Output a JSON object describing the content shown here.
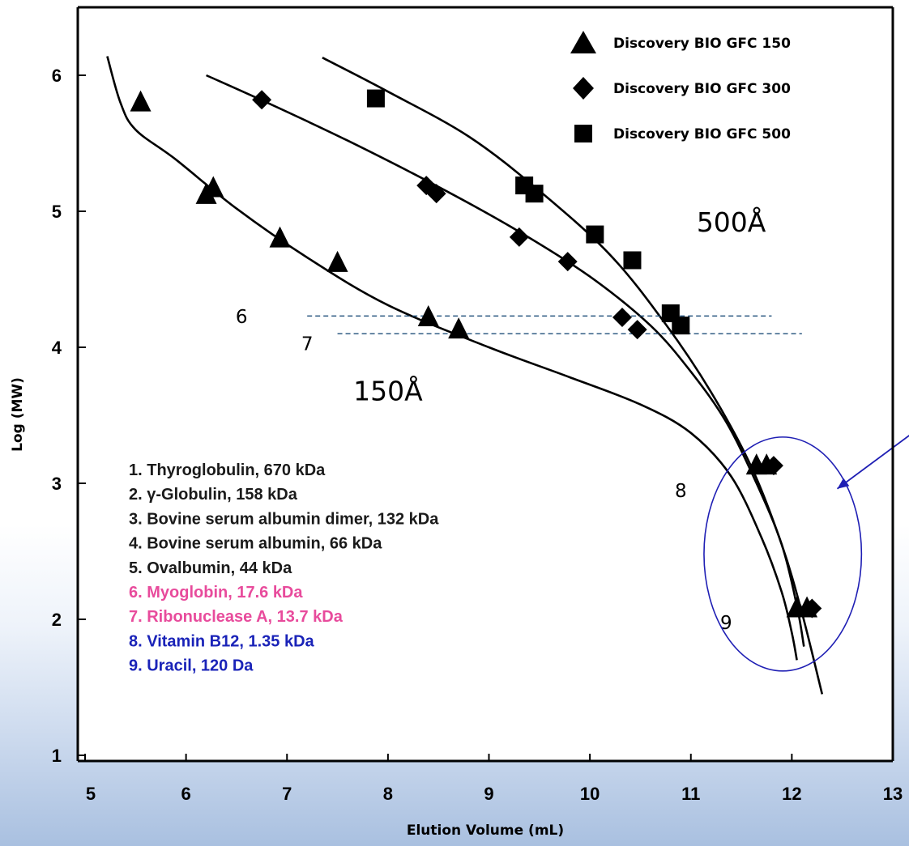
{
  "chart_data": {
    "type": "scatter",
    "xlabel": "Elution Volume (mL)",
    "ylabel": "Log (MW)",
    "xlim": [
      5,
      13
    ],
    "ylim": [
      1,
      6.5
    ],
    "x_ticks": [
      "5",
      "6",
      "7",
      "8",
      "9",
      "10",
      "11",
      "12",
      "13"
    ],
    "y_ticks": [
      "1",
      "2",
      "3",
      "4",
      "5",
      "6"
    ],
    "legend_position": "top-right",
    "series": [
      {
        "name": "Discovery BIO GFC 150",
        "marker": "triangle",
        "color": "#000000",
        "points": [
          [
            5.55,
            5.8
          ],
          [
            6.2,
            5.12
          ],
          [
            6.27,
            5.17
          ],
          [
            6.93,
            4.8
          ],
          [
            7.5,
            4.62
          ],
          [
            8.4,
            4.22
          ],
          [
            8.7,
            4.13
          ],
          [
            11.65,
            3.13
          ],
          [
            11.75,
            3.13
          ],
          [
            12.05,
            2.08
          ],
          [
            12.15,
            2.08
          ]
        ],
        "curve": [
          [
            5.22,
            6.14
          ],
          [
            5.35,
            5.8
          ],
          [
            5.5,
            5.6
          ],
          [
            5.9,
            5.38
          ],
          [
            6.5,
            5.02
          ],
          [
            7.2,
            4.66
          ],
          [
            8.0,
            4.31
          ],
          [
            9.0,
            4.0
          ],
          [
            9.8,
            3.78
          ],
          [
            10.5,
            3.58
          ],
          [
            11.0,
            3.37
          ],
          [
            11.4,
            3.05
          ],
          [
            11.7,
            2.6
          ],
          [
            11.9,
            2.2
          ],
          [
            12.0,
            1.9
          ],
          [
            12.05,
            1.7
          ]
        ]
      },
      {
        "name": "Discovery BIO GFC 300",
        "marker": "diamond",
        "color": "#000000",
        "points": [
          [
            6.75,
            5.82
          ],
          [
            8.38,
            5.19
          ],
          [
            8.48,
            5.13
          ],
          [
            9.3,
            4.81
          ],
          [
            9.78,
            4.63
          ],
          [
            10.32,
            4.22
          ],
          [
            10.47,
            4.13
          ],
          [
            11.82,
            3.13
          ],
          [
            12.2,
            2.08
          ]
        ],
        "curve": [
          [
            6.2,
            6.0
          ],
          [
            6.8,
            5.8
          ],
          [
            7.6,
            5.52
          ],
          [
            8.5,
            5.18
          ],
          [
            9.3,
            4.85
          ],
          [
            10.0,
            4.52
          ],
          [
            10.6,
            4.16
          ],
          [
            11.0,
            3.82
          ],
          [
            11.35,
            3.45
          ],
          [
            11.65,
            3.0
          ],
          [
            11.9,
            2.55
          ],
          [
            12.05,
            2.1
          ],
          [
            12.12,
            1.8
          ]
        ]
      },
      {
        "name": "Discovery BIO GFC 500",
        "marker": "square",
        "color": "#000000",
        "points": [
          [
            7.88,
            5.83
          ],
          [
            9.35,
            5.19
          ],
          [
            9.45,
            5.13
          ],
          [
            10.05,
            4.83
          ],
          [
            10.42,
            4.64
          ],
          [
            10.8,
            4.25
          ],
          [
            10.9,
            4.16
          ]
        ],
        "curve": [
          [
            7.35,
            6.13
          ],
          [
            8.0,
            5.88
          ],
          [
            8.8,
            5.55
          ],
          [
            9.5,
            5.15
          ],
          [
            10.2,
            4.68
          ],
          [
            10.75,
            4.17
          ],
          [
            11.2,
            3.67
          ],
          [
            11.6,
            3.12
          ],
          [
            11.9,
            2.55
          ],
          [
            12.1,
            2.05
          ],
          [
            12.3,
            1.45
          ]
        ]
      }
    ],
    "reference_lines": [
      {
        "y": 4.23,
        "x_start": 7.2,
        "x_end": 11.8,
        "style": "dashed",
        "color": "#1f4e79"
      },
      {
        "y": 4.1,
        "x_start": 7.5,
        "x_end": 12.1,
        "style": "dashed",
        "color": "#1f4e79"
      }
    ],
    "annotations": [
      {
        "text": "500Å",
        "x": 11.4,
        "y": 4.85,
        "kind": "pore"
      },
      {
        "text": "150Å",
        "x": 8.0,
        "y": 3.61,
        "kind": "pore"
      },
      {
        "text": "6",
        "x": 6.55,
        "y": 4.18,
        "kind": "num"
      },
      {
        "text": "7",
        "x": 7.2,
        "y": 3.98,
        "kind": "num"
      },
      {
        "text": "8",
        "x": 10.9,
        "y": 2.9,
        "kind": "num"
      },
      {
        "text": "9",
        "x": 11.35,
        "y": 1.93,
        "kind": "num"
      }
    ],
    "highlight_ellipse": {
      "cx": 11.91,
      "cy": 2.48,
      "rx_data": 0.78,
      "ry_data": 0.86,
      "color": "#1f1fb4"
    },
    "arrow": {
      "from": [
        13.25,
        3.4
      ],
      "to": [
        12.45,
        2.96
      ],
      "color": "#1f1fb4"
    },
    "compound_list": [
      {
        "text": "1. Thyroglobulin, 670 kDa",
        "color": "#1a1a1a"
      },
      {
        "text": "2. γ-Globulin, 158 kDa",
        "color": "#1a1a1a"
      },
      {
        "text": "3. Bovine serum albumin dimer, 132 kDa",
        "color": "#1a1a1a"
      },
      {
        "text": "4. Bovine serum albumin, 66 kDa",
        "color": "#1a1a1a"
      },
      {
        "text": "5. Ovalbumin, 44 kDa",
        "color": "#1a1a1a"
      },
      {
        "text": "6. Myoglobin, 17.6 kDa",
        "color": "#e84b9c"
      },
      {
        "text": "7. Ribonuclease A, 13.7 kDa",
        "color": "#e84b9c"
      },
      {
        "text": "8. Vitamin B12, 1.35 kDa",
        "color": "#1a23b8"
      },
      {
        "text": "9. Uracil, 120 Da",
        "color": "#1a23b8"
      }
    ]
  }
}
